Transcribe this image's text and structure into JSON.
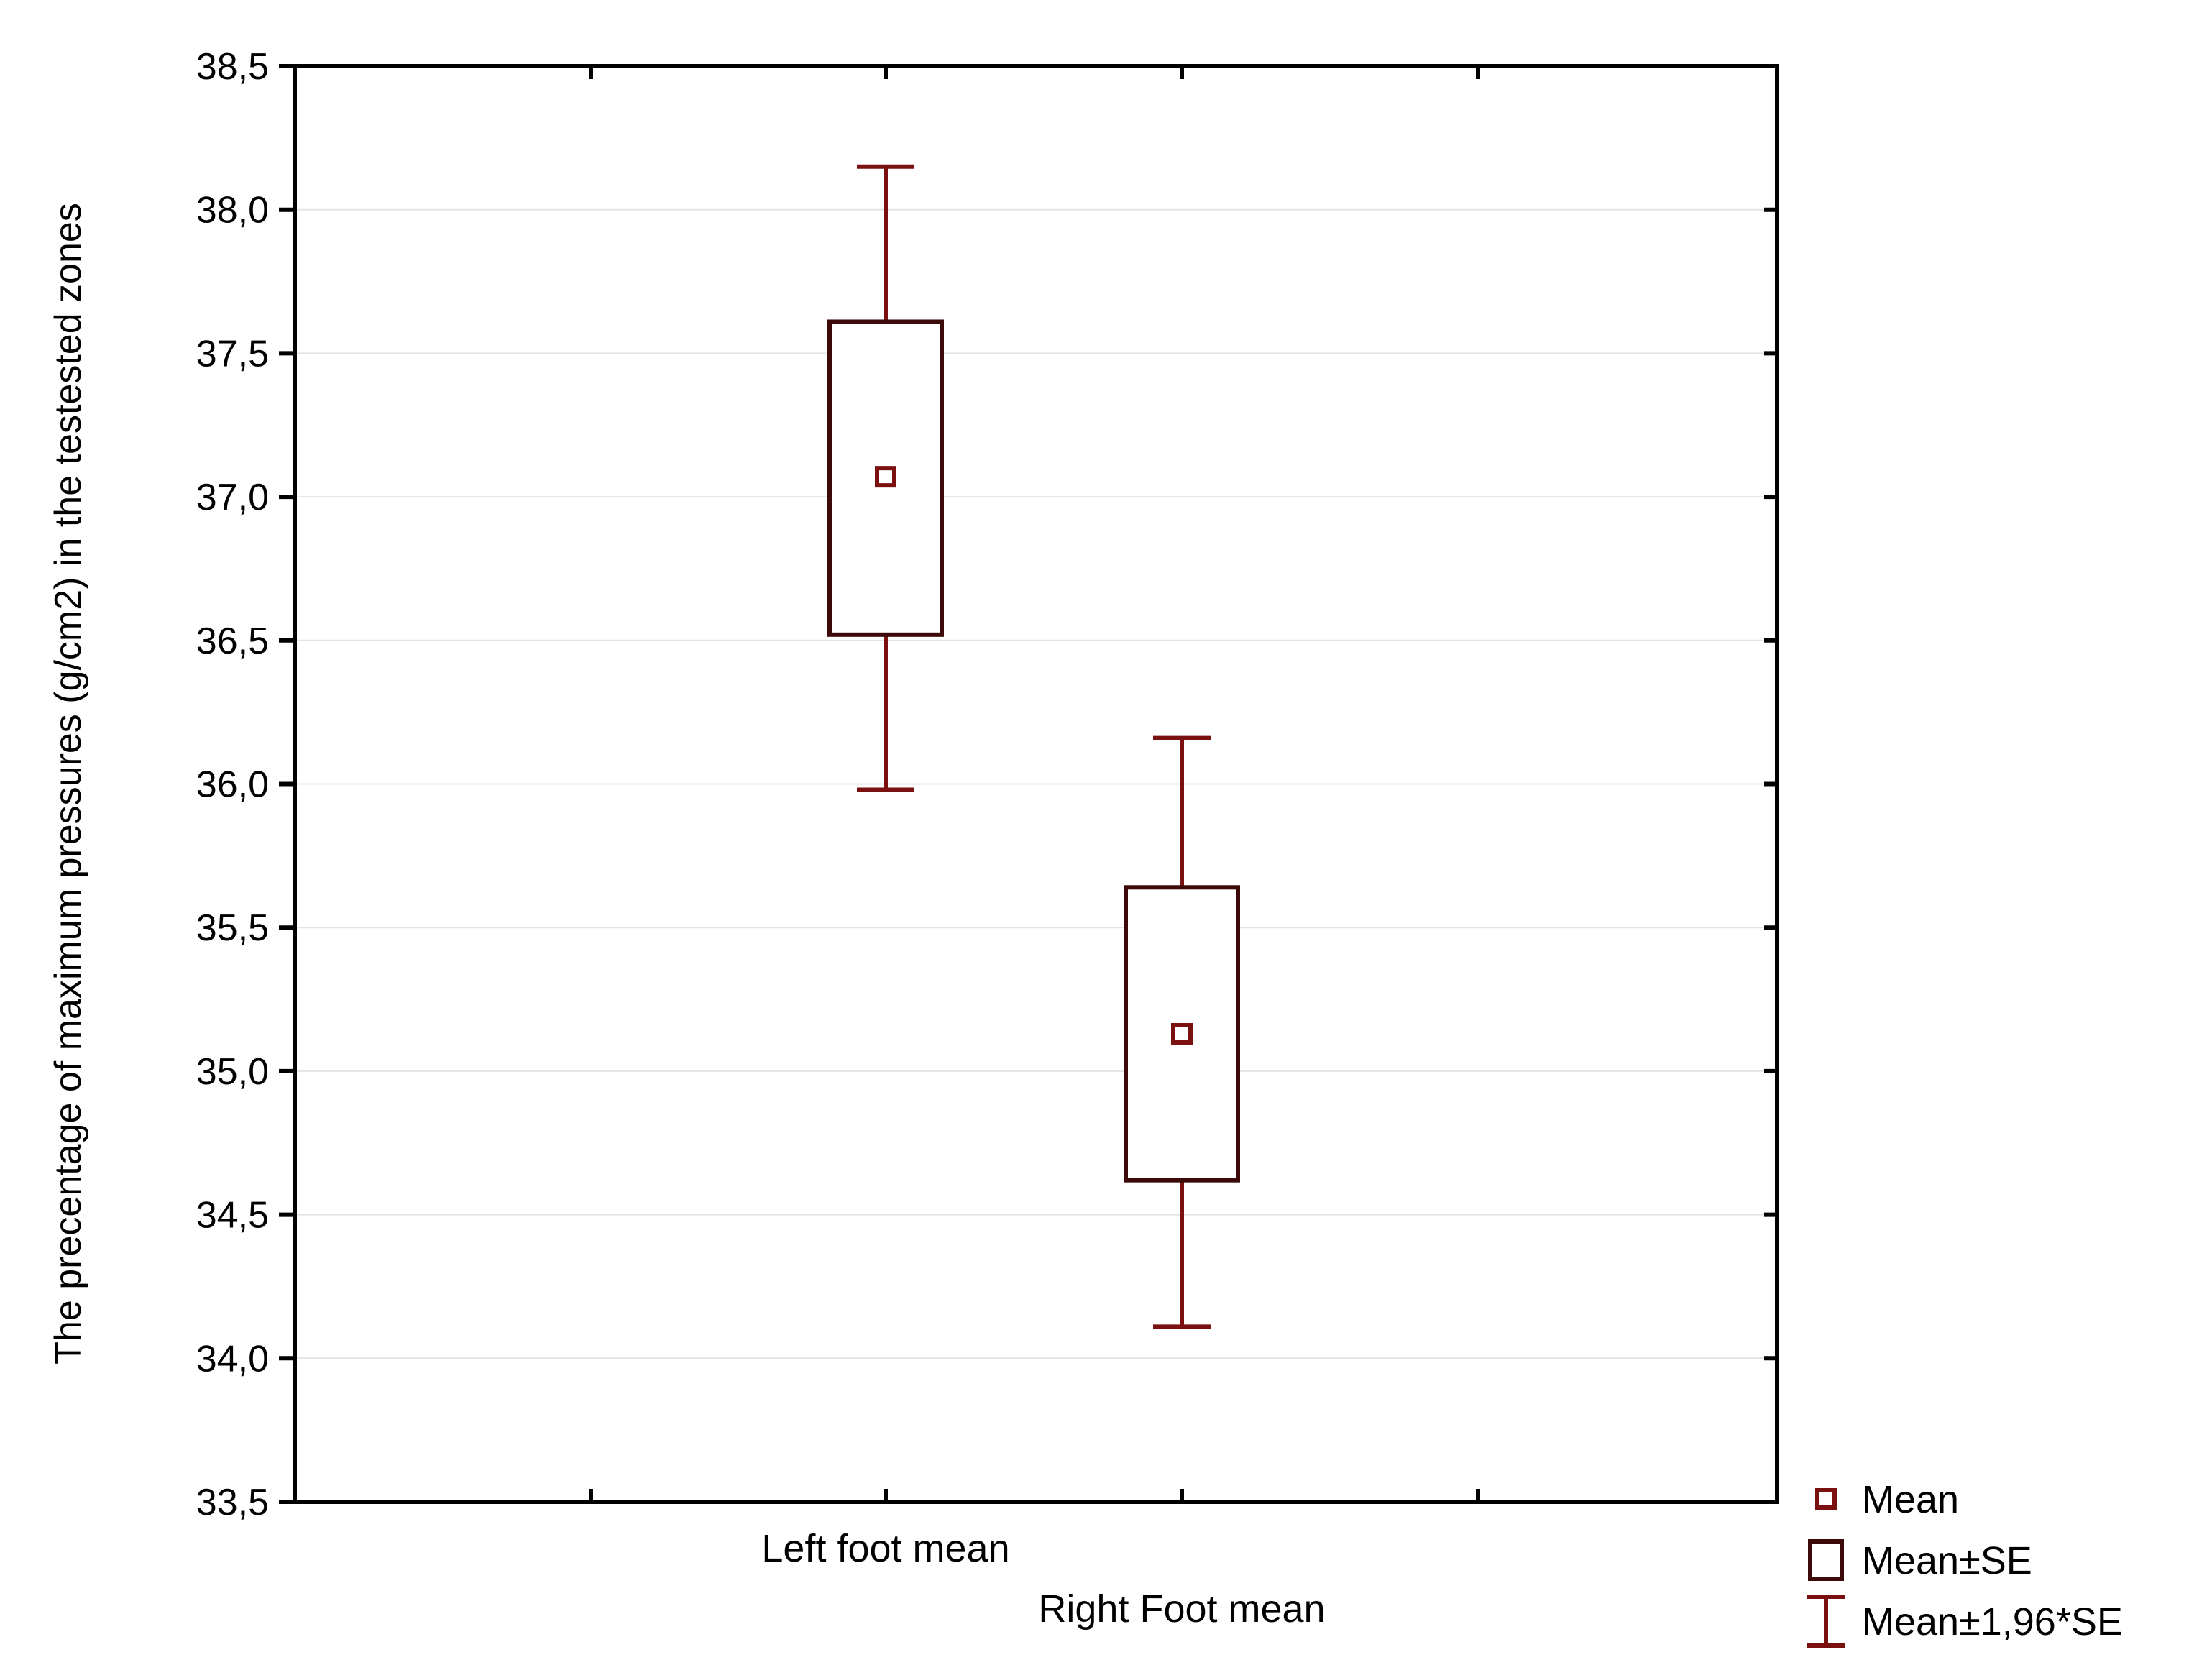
{
  "chart_data": {
    "type": "box",
    "ylabel": "The precentage of maximum pressures (g/cm2) in the testested zones",
    "xlabel": "",
    "ylim": [
      33.5,
      38.5
    ],
    "yticks": [
      "33,5",
      "34,0",
      "34,5",
      "35,0",
      "35,5",
      "36,0",
      "36,5",
      "37,0",
      "37,5",
      "38,0",
      "38,5"
    ],
    "ytick_values": [
      33.5,
      34.0,
      34.5,
      35.0,
      35.5,
      36.0,
      36.5,
      37.0,
      37.5,
      38.0,
      38.5
    ],
    "grid": true,
    "categories": [
      "Left foot mean",
      "Right Foot mean"
    ],
    "groups": [
      {
        "label": "Left foot mean",
        "mean": 37.07,
        "se_low": 36.52,
        "se_high": 37.61,
        "ci_low": 35.98,
        "ci_high": 38.15
      },
      {
        "label": "Right Foot mean",
        "mean": 35.13,
        "se_low": 34.62,
        "se_high": 35.64,
        "ci_low": 34.11,
        "ci_high": 36.16
      }
    ],
    "legend": {
      "position": "bottom-right",
      "items": [
        {
          "label": "Mean",
          "symbol": "small-square"
        },
        {
          "label": "Mean±SE",
          "symbol": "box"
        },
        {
          "label": "Mean±1,96*SE",
          "symbol": "whisker"
        }
      ]
    },
    "colors": {
      "mean": "#7a1010",
      "box": "#3d0a0a",
      "whisker": "#7a1010",
      "grid": "#e4e4e4",
      "axis": "#000000"
    }
  }
}
